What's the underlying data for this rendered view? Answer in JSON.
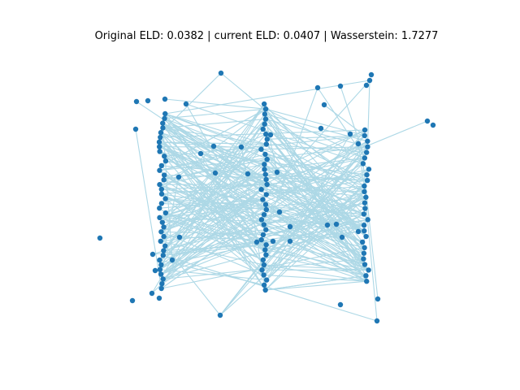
{
  "figure": {
    "title": "Original ELD: 0.0382 | current ELD: 0.0407 | Wasserstein: 1.7277"
  },
  "graph": {
    "colors": {
      "edge": "#add8e6",
      "node": "#1f77b4",
      "background": "#ffffff"
    },
    "node_count": 150,
    "layer_node_counts": [
      40,
      40,
      40,
      30
    ],
    "edge_count": 300
  }
}
